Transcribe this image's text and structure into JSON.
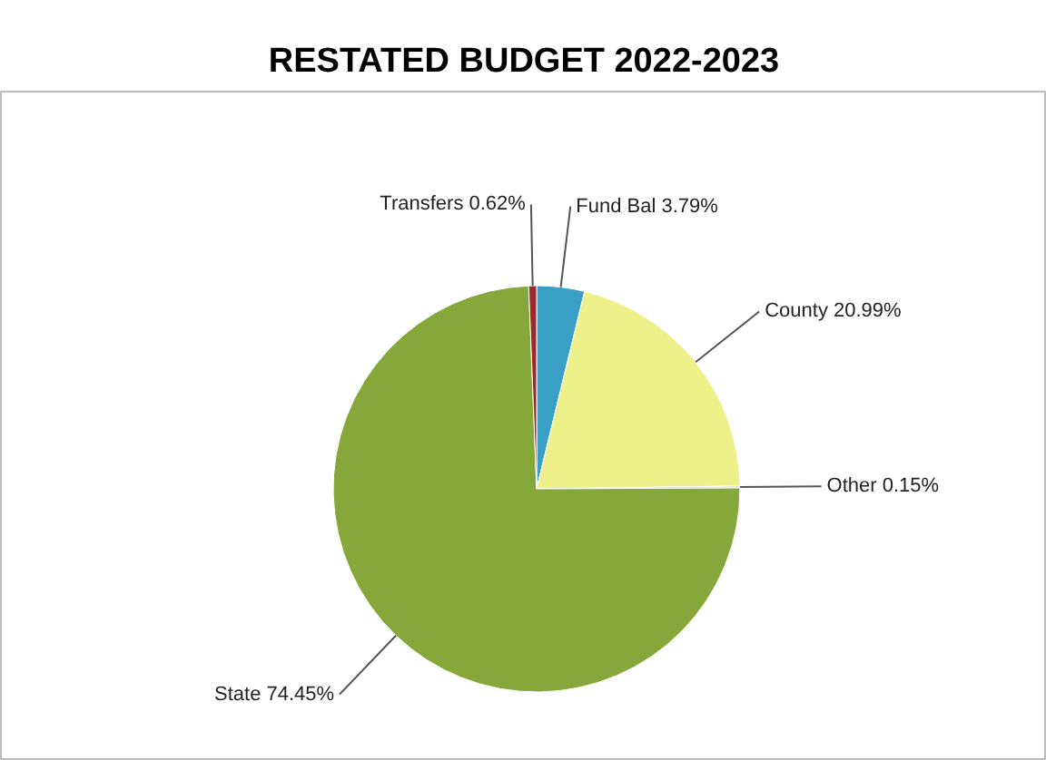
{
  "chart_data": {
    "type": "pie",
    "title": "RESTATED BUDGET 2022-2023",
    "categories": [
      "Fund Bal",
      "County",
      "Other",
      "State",
      "Transfers"
    ],
    "values": [
      3.79,
      20.99,
      0.15,
      74.45,
      0.62
    ],
    "value_labels": [
      "3.79%",
      "20.99%",
      "0.15%",
      "74.45%",
      "0.62%"
    ],
    "colors": [
      "#3a9fc4",
      "#eef08a",
      "#c8c8c8",
      "#86a83a",
      "#9c2a2a"
    ]
  }
}
